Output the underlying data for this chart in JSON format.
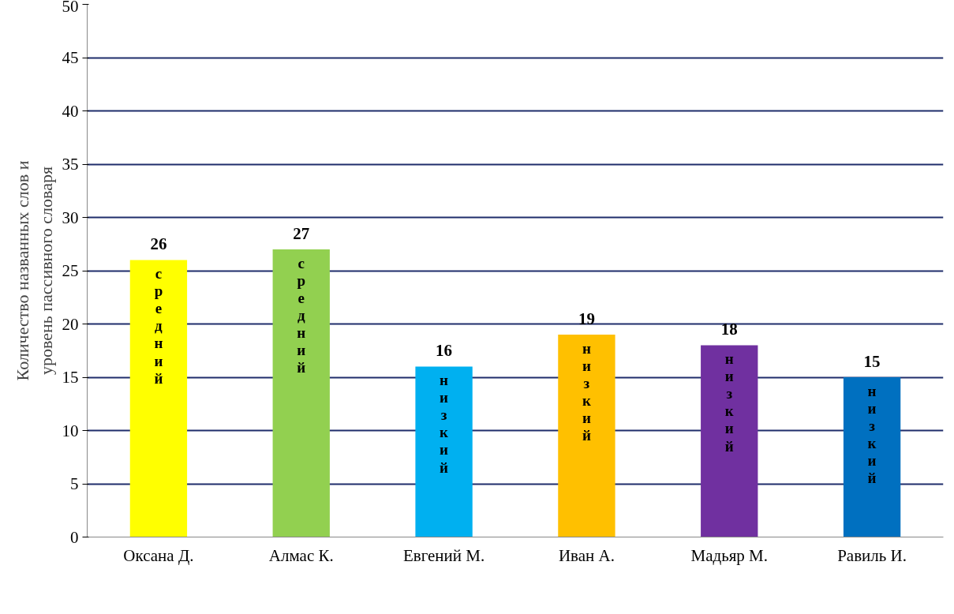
{
  "chart_data": {
    "type": "bar",
    "ylabel": "Количество названных слов и уровень пассивного словаря",
    "categories": [
      "Оксана Д.",
      "Алмас К.",
      "Евгений М.",
      "Иван А.",
      "Мадьяр М.",
      "Равиль И."
    ],
    "values": [
      26,
      27,
      16,
      19,
      18,
      15
    ],
    "colors": [
      "#ffff00",
      "#92d050",
      "#00b0f0",
      "#ffc000",
      "#7030a0",
      "#0070c0"
    ],
    "ylim": [
      0,
      50
    ],
    "yticks": [
      0,
      5,
      10,
      15,
      20,
      25,
      30,
      35,
      40,
      45,
      50
    ],
    "grid": "y",
    "data_labels": true,
    "annotations": [
      "средний",
      "средний",
      "низкий",
      "низкий",
      "низкий",
      "низкий"
    ]
  }
}
